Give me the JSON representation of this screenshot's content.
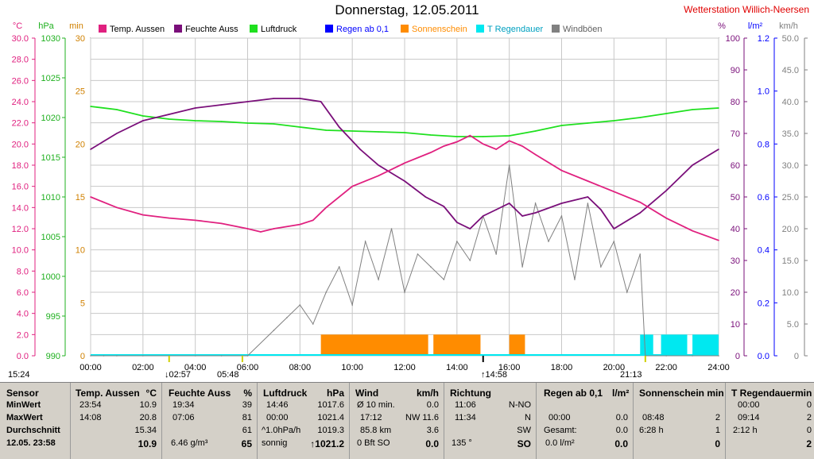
{
  "window": {
    "title": "Donnerstag, 12.05.2011",
    "station": "Wetterstation Willich-Neersen"
  },
  "axes": {
    "temp_unit": "°C",
    "hpa_unit": "hPa",
    "min_unit": "min",
    "pct_unit": "%",
    "rain_unit": "l/m²",
    "wind_unit": "km/h",
    "temp_ticks": [
      "30.0",
      "28.0",
      "26.0",
      "24.0",
      "22.0",
      "20.0",
      "18.0",
      "16.0",
      "14.0",
      "12.0",
      "10.0",
      "8.0",
      "6.0",
      "4.0",
      "2.0",
      "0.0"
    ],
    "hpa_ticks": [
      "1030",
      "1025",
      "1020",
      "1015",
      "1010",
      "1005",
      "1000",
      "995",
      "990"
    ],
    "min_ticks": [
      "30",
      "25",
      "20",
      "15",
      "10",
      "5",
      "0"
    ],
    "pct_ticks": [
      "100",
      "90",
      "80",
      "70",
      "60",
      "50",
      "40",
      "30",
      "20",
      "10",
      "0"
    ],
    "rain_ticks": [
      "1.2",
      "1.0",
      "0.8",
      "0.6",
      "0.4",
      "0.2",
      "0.0"
    ],
    "wind_ticks": [
      "50.0",
      "45.0",
      "40.0",
      "35.0",
      "30.0",
      "25.0",
      "20.0",
      "15.0",
      "10.0",
      "5.0",
      "0"
    ],
    "time_ticks": [
      "00:00",
      "02:00",
      "04:00",
      "06:00",
      "08:00",
      "10:00",
      "12:00",
      "14:00",
      "16:00",
      "18:00",
      "20:00",
      "22:00",
      "24:00"
    ]
  },
  "legend": [
    {
      "label": "Temp. Aussen",
      "color": "#e0207f"
    },
    {
      "label": "Feuchte Auss",
      "color": "#7a0f7a"
    },
    {
      "label": "Luftdruck",
      "color": "#1fe01f"
    },
    {
      "label": "Regen ab 0,1",
      "color": "#0000ff"
    },
    {
      "label": "Sonnenschein",
      "color": "#ff8c00"
    },
    {
      "label": "T Regendauer",
      "color": "#00e8f0"
    },
    {
      "label": "Windböen",
      "color": "#808080"
    }
  ],
  "markers": {
    "left_time": "15:24",
    "sunrise": "05:48",
    "sunrise_arrow": "↓02:57",
    "noon": "↑14:58",
    "sunset": "21:13"
  },
  "chart_data": {
    "type": "line",
    "x_range": [
      "00:00",
      "24:00"
    ],
    "series": [
      {
        "name": "Temp. Aussen",
        "axis": "°C",
        "ylim": [
          0,
          30
        ],
        "x": [
          0,
          1,
          2,
          3,
          4,
          5,
          6,
          6.5,
          7,
          8,
          8.5,
          9,
          10,
          11,
          12,
          13,
          13.5,
          14,
          14.5,
          15,
          15.5,
          16,
          16.5,
          17,
          18,
          19,
          20,
          21,
          22,
          23,
          24
        ],
        "y": [
          15.0,
          14.0,
          13.3,
          13.0,
          12.8,
          12.5,
          12.0,
          11.7,
          12.0,
          12.4,
          12.8,
          14.0,
          16.0,
          17.0,
          18.2,
          19.2,
          19.8,
          20.2,
          20.8,
          20.0,
          19.5,
          20.3,
          19.8,
          19.0,
          17.5,
          16.5,
          15.5,
          14.5,
          13.0,
          11.8,
          10.9
        ]
      },
      {
        "name": "Feuchte Auss",
        "axis": "%",
        "ylim": [
          0,
          100
        ],
        "x": [
          0,
          1,
          2,
          3,
          4,
          5,
          6,
          7,
          8,
          8.8,
          9.5,
          10.3,
          11,
          12,
          12.8,
          13.5,
          14,
          14.5,
          15,
          15.5,
          16,
          16.5,
          17,
          18,
          19,
          19.5,
          20,
          21,
          22,
          23,
          24
        ],
        "y": [
          65,
          70,
          74,
          76,
          78,
          79,
          80,
          81,
          81,
          80,
          72,
          65,
          60,
          55,
          50,
          47,
          42,
          40,
          44,
          46,
          48,
          44,
          45,
          48,
          50,
          46,
          40,
          45,
          52,
          60,
          65
        ]
      },
      {
        "name": "Luftdruck",
        "axis": "hPa",
        "ylim": [
          990,
          1030
        ],
        "x": [
          0,
          1,
          2,
          3,
          4,
          5,
          6,
          7,
          8,
          9,
          10,
          11,
          12,
          13,
          14,
          15,
          16,
          17,
          18,
          19,
          20,
          21,
          22,
          23,
          24
        ],
        "y": [
          1021.4,
          1021.0,
          1020.2,
          1019.8,
          1019.6,
          1019.5,
          1019.3,
          1019.2,
          1018.8,
          1018.4,
          1018.3,
          1018.2,
          1018.1,
          1017.8,
          1017.6,
          1017.6,
          1017.7,
          1018.3,
          1019.0,
          1019.3,
          1019.6,
          1020.0,
          1020.5,
          1021.0,
          1021.2
        ]
      },
      {
        "name": "Windböen",
        "axis": "km/h",
        "ylim": [
          0,
          50
        ],
        "x": [
          0,
          0.5,
          1,
          2,
          3,
          4,
          5,
          6,
          7,
          7.5,
          8,
          8.5,
          9,
          9.5,
          10,
          10.5,
          11,
          11.5,
          12,
          12.5,
          13,
          13.5,
          14,
          14.5,
          15,
          15.5,
          16,
          16.5,
          17,
          17.5,
          18,
          18.5,
          19,
          19.5,
          20,
          20.5,
          21,
          21.2,
          22,
          23,
          24
        ],
        "y": [
          0,
          0,
          0,
          0,
          0,
          0,
          0,
          0,
          4,
          6,
          8,
          5,
          10,
          14,
          8,
          18,
          12,
          20,
          10,
          16,
          14,
          12,
          18,
          15,
          22,
          16,
          30,
          14,
          24,
          18,
          22,
          12,
          24,
          14,
          18,
          10,
          16,
          0,
          0,
          0,
          0
        ]
      },
      {
        "name": "Sonnenschein",
        "axis": "min",
        "type": "bar",
        "ylim": [
          0,
          30
        ],
        "intervals": [
          [
            8.8,
            12.9,
            2.0
          ],
          [
            13.1,
            14.9,
            2.0
          ],
          [
            16.0,
            16.6,
            2.0
          ]
        ]
      },
      {
        "name": "T Regendauer",
        "axis": "min",
        "type": "bar",
        "ylim": [
          0,
          30
        ],
        "intervals": [
          [
            21.0,
            21.5,
            2.0
          ],
          [
            21.8,
            22.8,
            2.0
          ],
          [
            23.0,
            24.0,
            2.0
          ]
        ]
      }
    ]
  },
  "table": {
    "sensor": {
      "header": "Sensor",
      "rows": [
        "MinWert",
        "MaxWert",
        "Durchschnitt",
        "12.05. 23:58"
      ]
    },
    "temp": {
      "header": "Temp. Aussen",
      "unit": "°C",
      "rows": [
        [
          "23:54",
          "10.9"
        ],
        [
          "14:08",
          "20.8"
        ],
        [
          "",
          "15.34"
        ],
        [
          "",
          "10.9"
        ]
      ]
    },
    "feuchte": {
      "header": "Feuchte Auss",
      "unit": "%",
      "rows": [
        [
          "19:34",
          "39"
        ],
        [
          "07:06",
          "81"
        ],
        [
          "",
          "61"
        ],
        [
          "6.46 g/m³",
          "65"
        ]
      ]
    },
    "luftdruck": {
      "header": "Luftdruck",
      "unit": "hPa",
      "rows": [
        [
          "14:46",
          "1017.6"
        ],
        [
          "00:00",
          "1021.4"
        ],
        [
          "^1.0hPa/h",
          "1019.3"
        ],
        [
          "sonnig",
          "↑1021.2"
        ]
      ]
    },
    "wind": {
      "header": "Wind",
      "unit": "km/h",
      "rows": [
        [
          "Ø 10 min.",
          "0.0"
        ],
        [
          "17:12",
          "NW 11.6"
        ],
        [
          "85.8 km",
          "3.6"
        ],
        [
          "0 Bft SO",
          "0.0"
        ]
      ]
    },
    "richtung": {
      "header": "Richtung",
      "rows": [
        [
          "11:06",
          "N-NO"
        ],
        [
          "11:34",
          "N"
        ],
        [
          "",
          "SW"
        ],
        [
          "135 °",
          "SO"
        ]
      ]
    },
    "regen": {
      "header": "Regen ab 0,1",
      "unit": "l/m²",
      "rows": [
        [
          "",
          ""
        ],
        [
          "00:00",
          "0.0"
        ],
        [
          "Gesamt:",
          "0.0"
        ],
        [
          "0.0 l/m²",
          "0.0"
        ]
      ]
    },
    "sonne": {
      "header": "Sonnenschein min",
      "rows": [
        [
          "",
          ""
        ],
        [
          "08:48",
          "2"
        ],
        [
          "6:28 h",
          "1"
        ],
        [
          "",
          "0"
        ]
      ]
    },
    "tregen": {
      "header": "T Regendauermin",
      "rows": [
        [
          "00:00",
          "0"
        ],
        [
          "09:14",
          "2"
        ],
        [
          "2:12 h",
          "0"
        ],
        [
          "",
          "2"
        ]
      ]
    }
  }
}
